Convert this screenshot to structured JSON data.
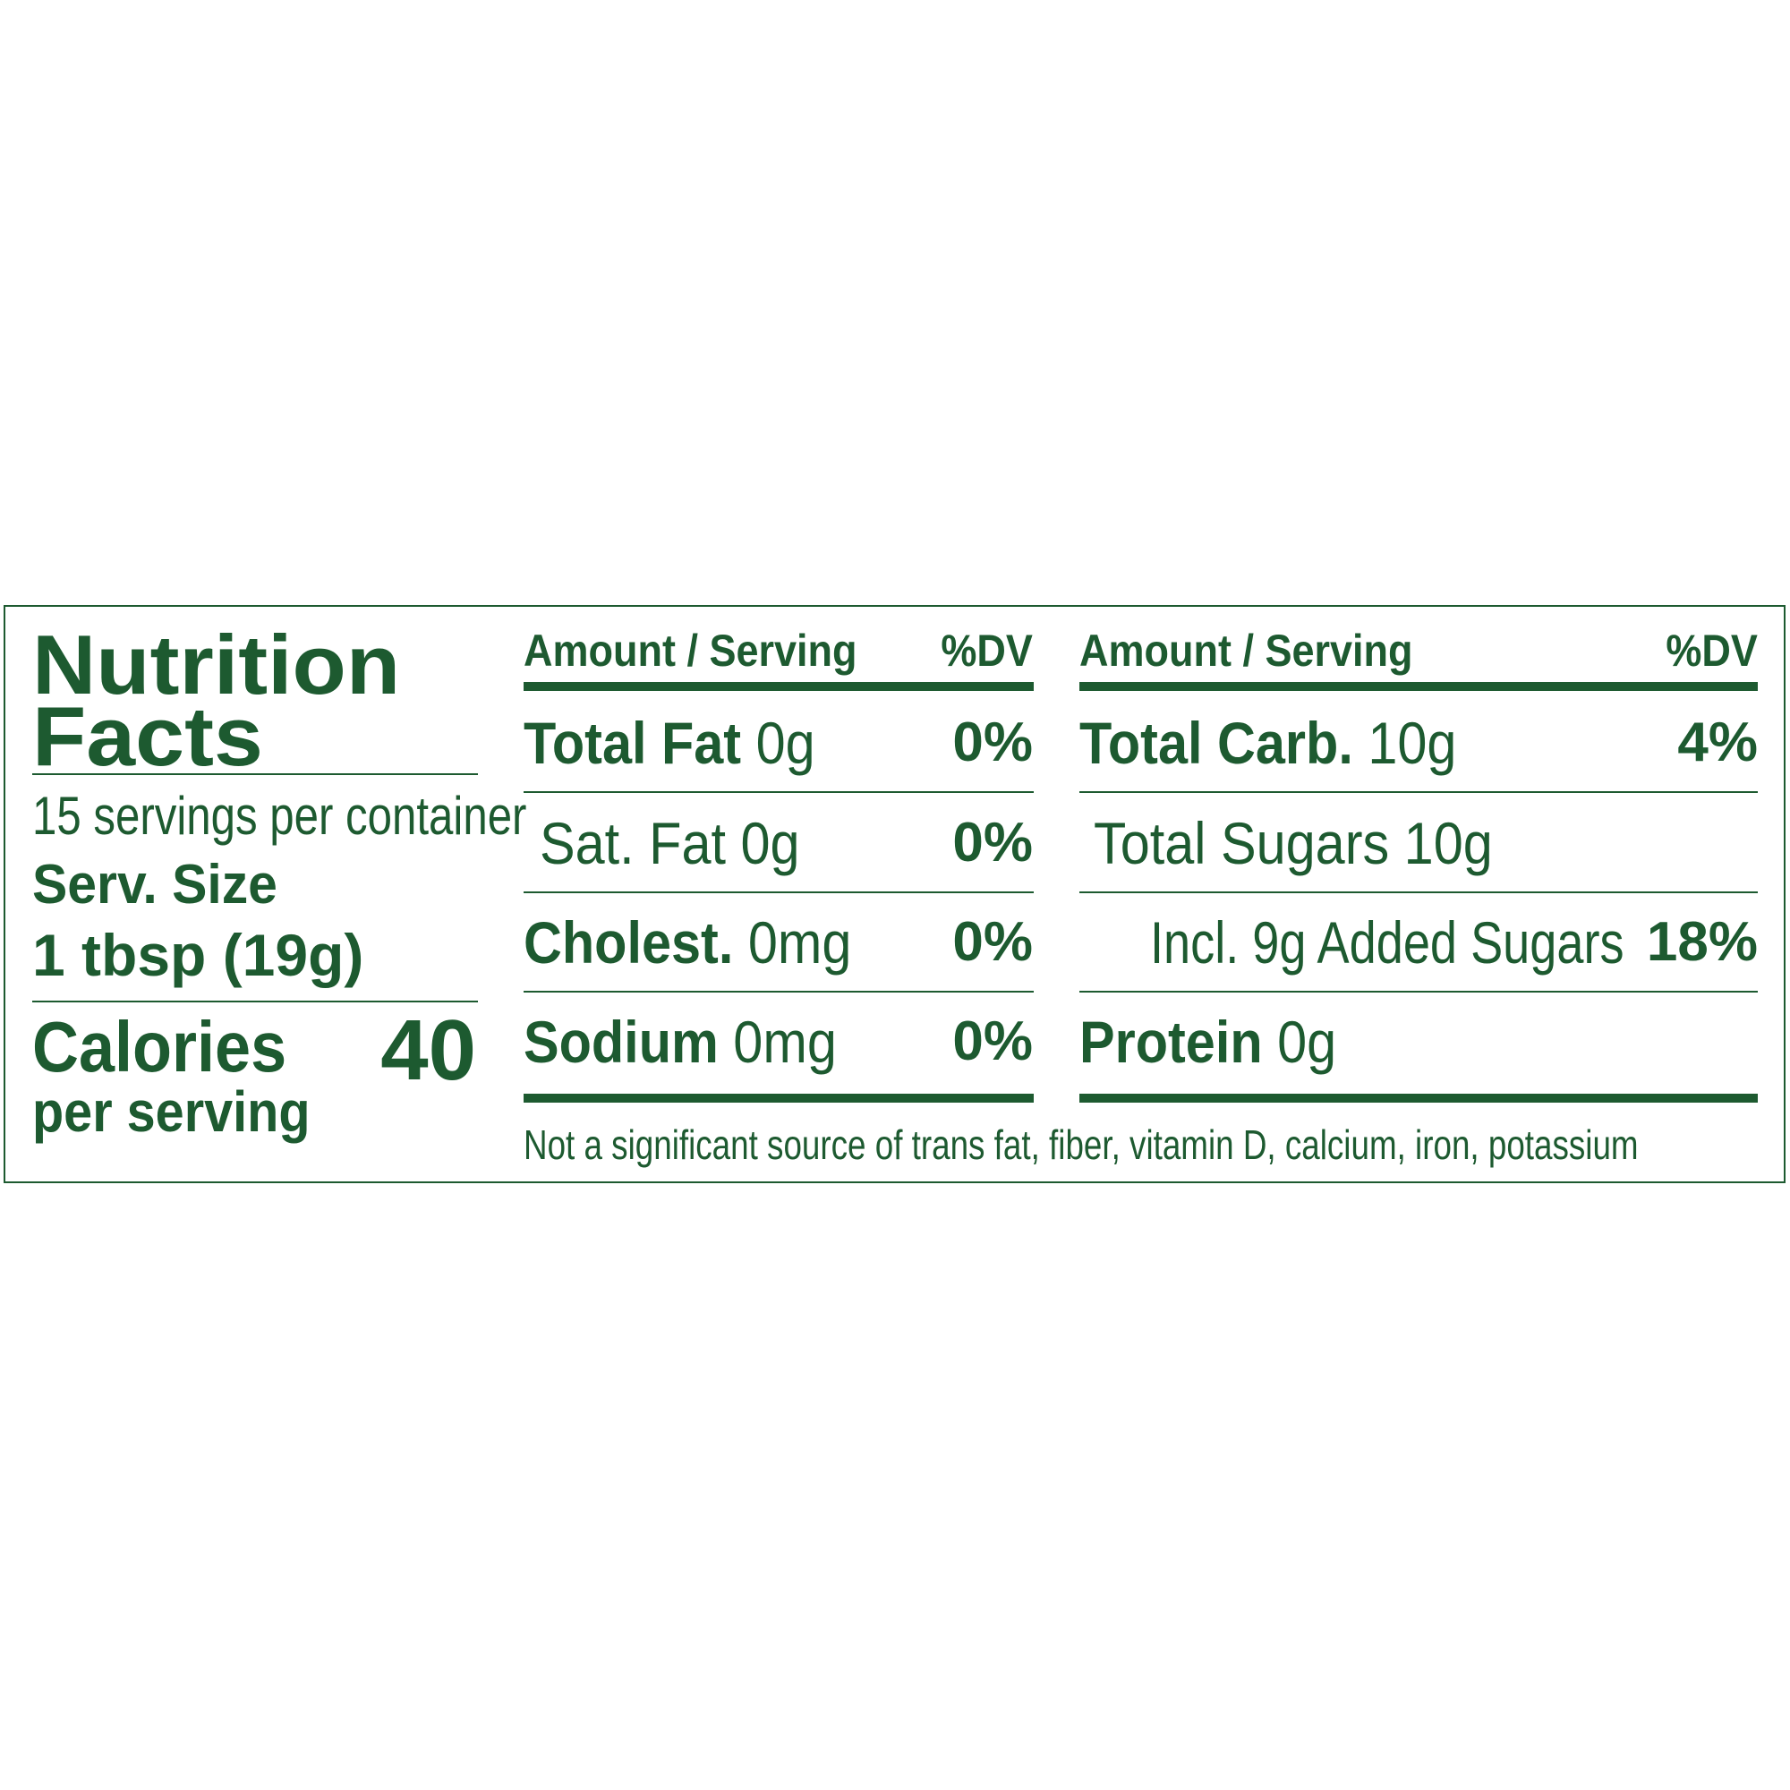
{
  "colors": {
    "text": "#1d5a30",
    "background": "#ffffff"
  },
  "left": {
    "title_line1": "Nutrition",
    "title_line2": "Facts",
    "servings_per_container": "15 servings per container",
    "serving_size_label": "Serv. Size",
    "serving_size_value": "1 tbsp (19g)",
    "calories_label": "Calories",
    "calories_value": "40",
    "calories_sub": "per serving"
  },
  "middle": {
    "header_amount": "Amount / Serving",
    "header_dv": "%DV",
    "rows": [
      {
        "name": "Total Fat",
        "amount": "0g",
        "dv": "0%"
      },
      {
        "name": "Sat. Fat",
        "amount": "0g",
        "dv": "0%"
      },
      {
        "name": "Cholest.",
        "amount": "0mg",
        "dv": "0%"
      },
      {
        "name": "Sodium",
        "amount": "0mg",
        "dv": "0%"
      }
    ]
  },
  "right": {
    "header_amount": "Amount / Serving",
    "header_dv": "%DV",
    "rows": [
      {
        "name": "Total Carb.",
        "amount": "10g",
        "dv": "4%"
      },
      {
        "name": "Total Sugars 10g"
      },
      {
        "name": "Incl. 9g Added Sugars",
        "dv": "18%"
      },
      {
        "name": "Protein",
        "amount": "0g"
      }
    ]
  },
  "footnote": "Not a significant source of trans fat, fiber, vitamin D, calcium, iron, potassium"
}
